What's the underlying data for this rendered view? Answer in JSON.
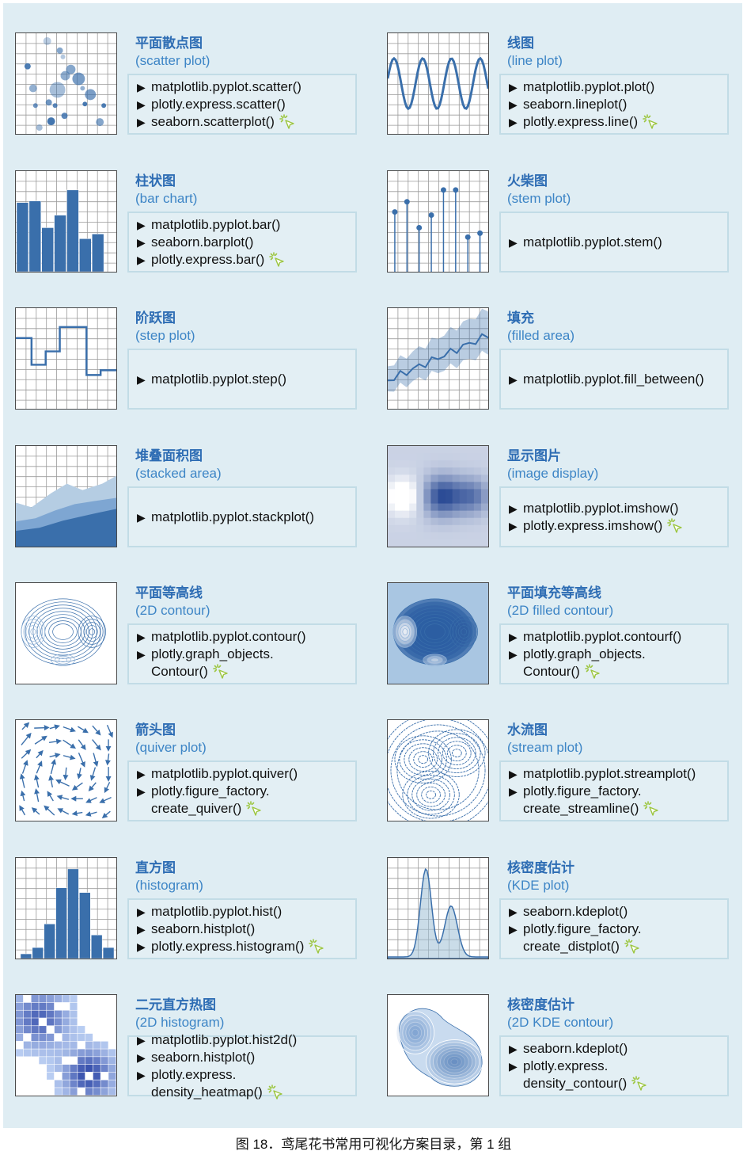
{
  "caption": "图 18．鸢尾花书常用可视化方案目录，第 1 组",
  "entries": [
    {
      "title": "平面散点图",
      "subtitle": "(scatter plot)",
      "lines": [
        [
          "▶ ",
          "matplotlib.pyplot.scatter()"
        ],
        [
          "▶ ",
          "plotly.express.scatter()"
        ],
        [
          "▶ ",
          "seaborn.scatterplot()"
        ]
      ],
      "cursorLine": 2
    },
    {
      "title": "线图",
      "subtitle": "(line plot)",
      "lines": [
        [
          "▶ ",
          "matplotlib.pyplot.plot()"
        ],
        [
          "▶ ",
          "seaborn.lineplot()"
        ],
        [
          "▶ ",
          "plotly.express.line()"
        ]
      ],
      "cursorLine": 2
    },
    {
      "title": "柱状图",
      "subtitle": "(bar chart)",
      "lines": [
        [
          "▶ ",
          "matplotlib.pyplot.bar()"
        ],
        [
          "▶ ",
          "seaborn.barplot()"
        ],
        [
          "▶ ",
          "plotly.express.bar()"
        ]
      ],
      "cursorLine": 2
    },
    {
      "title": "火柴图",
      "subtitle": "(stem plot)",
      "lines": [
        [
          "▶ ",
          "matplotlib.pyplot.stem()"
        ]
      ],
      "cursorLine": -1
    },
    {
      "title": "阶跃图",
      "subtitle": "(step plot)",
      "lines": [
        [
          "▶ ",
          "matplotlib.pyplot.step()"
        ]
      ],
      "cursorLine": -1
    },
    {
      "title": "填充",
      "subtitle": "(filled area)",
      "lines": [
        [
          "▶ ",
          "matplotlib.pyplot.fill_between()"
        ]
      ],
      "cursorLine": -1
    },
    {
      "title": "堆叠面积图",
      "subtitle": "(stacked area)",
      "lines": [
        [
          "▶ ",
          "matplotlib.pyplot.stackplot()"
        ]
      ],
      "cursorLine": -1
    },
    {
      "title": "显示图片",
      "subtitle": "(image display)",
      "lines": [
        [
          "▶ ",
          "matplotlib.pyplot.imshow()"
        ],
        [
          "▶ ",
          "plotly.express.imshow()"
        ]
      ],
      "cursorLine": 1
    },
    {
      "title": "平面等高线",
      "subtitle": "(2D contour)",
      "lines": [
        [
          "▶ ",
          "matplotlib.pyplot.contour()"
        ],
        [
          "▶ ",
          "plotly.graph_objects."
        ],
        [
          "",
          "Contour()"
        ]
      ],
      "cursorLine": 2
    },
    {
      "title": "平面填充等高线",
      "subtitle": "(2D filled contour)",
      "lines": [
        [
          "▶ ",
          "matplotlib.pyplot.contourf()"
        ],
        [
          "▶ ",
          "plotly.graph_objects."
        ],
        [
          "",
          "Contour()"
        ]
      ],
      "cursorLine": 2
    },
    {
      "title": "箭头图",
      "subtitle": "(quiver plot)",
      "lines": [
        [
          "▶ ",
          "matplotlib.pyplot.quiver()"
        ],
        [
          "▶ ",
          "plotly.figure_factory."
        ],
        [
          "",
          "create_quiver()"
        ]
      ],
      "cursorLine": 2
    },
    {
      "title": "水流图",
      "subtitle": "(stream plot)",
      "lines": [
        [
          "▶ ",
          "matplotlib.pyplot.streamplot()"
        ],
        [
          "▶ ",
          "plotly.figure_factory."
        ],
        [
          "",
          "create_streamline()"
        ]
      ],
      "cursorLine": 2
    },
    {
      "title": "直方图",
      "subtitle": "(histogram)",
      "lines": [
        [
          "▶ ",
          "matplotlib.pyplot.hist()"
        ],
        [
          "▶ ",
          "seaborn.histplot()"
        ],
        [
          "▶ ",
          "plotly.express.histogram()"
        ]
      ],
      "cursorLine": 2
    },
    {
      "title": "核密度估计",
      "subtitle": "(KDE plot)",
      "lines": [
        [
          "▶ ",
          "seaborn.kdeplot()"
        ],
        [
          "▶ ",
          "plotly.figure_factory."
        ],
        [
          "",
          "create_distplot()"
        ]
      ],
      "cursorLine": 2
    },
    {
      "title": "二元直方热图",
      "subtitle": "(2D histogram)",
      "lines": [
        [
          "▶ ",
          "matplotlib.pyplot.hist2d()"
        ],
        [
          "▶ ",
          "seaborn.histplot()"
        ],
        [
          "▶ ",
          "plotly.express."
        ],
        [
          "",
          "density_heatmap()"
        ]
      ],
      "cursorLine": 3
    },
    {
      "title": "核密度估计",
      "subtitle": "(2D KDE contour)",
      "lines": [
        [
          "▶ ",
          "seaborn.kdeplot()"
        ],
        [
          "▶ ",
          "plotly.express."
        ],
        [
          "",
          "density_contour()"
        ]
      ],
      "cursorLine": 2
    }
  ],
  "icons": [
    "scatter-icon",
    "line-icon",
    "bar-icon",
    "stem-icon",
    "step-icon",
    "fill-icon",
    "stackplot-icon",
    "imshow-icon",
    "contour-icon",
    "contourf-icon",
    "quiver-icon",
    "streamplot-icon",
    "histogram-icon",
    "kde-icon",
    "hist2d-icon",
    "kde2d-icon"
  ],
  "colors": {
    "title": "#2e6db4",
    "subtitle": "#3d85c6",
    "panel": "#dfedf3",
    "box_border": "#c2dce6",
    "plot_blue": "#3a6fab"
  }
}
